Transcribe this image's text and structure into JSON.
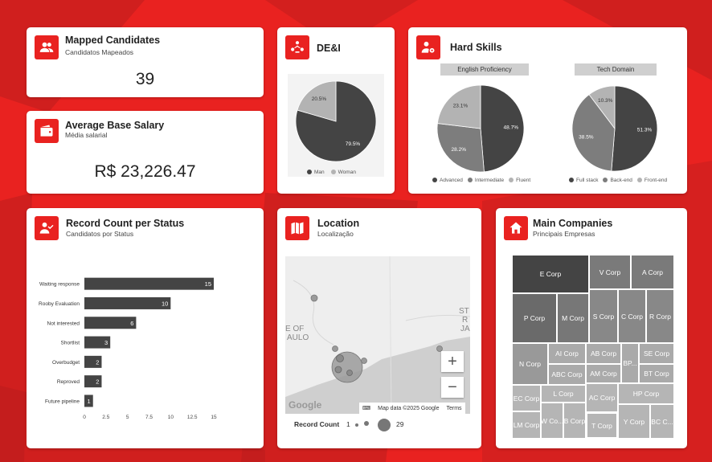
{
  "colors": {
    "brand": "#e92220",
    "dark_series": "#444444",
    "mid_series": "#7d7d7d",
    "light_series": "#b3b3b3"
  },
  "mapped_candidates": {
    "title": "Mapped Candidates",
    "subtitle": "Candidatos Mapeados",
    "value": "39",
    "icon": "people-icon"
  },
  "average_salary": {
    "title": "Average Base Salary",
    "subtitle": "Média salarial",
    "value": "R$ 23,226.47",
    "icon": "wallet-icon"
  },
  "dei": {
    "title": "DE&I",
    "icon": "diversity-icon",
    "chart_data": {
      "type": "pie",
      "labels": [
        "Man",
        "Woman"
      ],
      "values": [
        79.5,
        20.5
      ],
      "value_labels": [
        "79.5%",
        "20.5%"
      ]
    },
    "legend": [
      "Man",
      "Woman"
    ]
  },
  "hard_skills": {
    "title": "Hard Skills",
    "icon": "person-gear-icon",
    "english": {
      "header": "English Proficiency",
      "chart_data": {
        "type": "pie",
        "labels": [
          "Advanced",
          "Intermediate",
          "Fluent"
        ],
        "values": [
          48.7,
          28.2,
          23.1
        ],
        "value_labels": [
          "48.7%",
          "28.2%",
          "23.1%"
        ]
      },
      "legend": [
        "Advanced",
        "Intermediate",
        "Fluent"
      ]
    },
    "tech": {
      "header": "Tech Domain",
      "chart_data": {
        "type": "pie",
        "labels": [
          "Full stack",
          "Back-end",
          "Front-end"
        ],
        "values": [
          51.3,
          38.5,
          10.3
        ],
        "value_labels": [
          "51.3%",
          "38.5%",
          "10.3%"
        ]
      },
      "legend": [
        "Full stack",
        "Back-end",
        "Front-end"
      ]
    }
  },
  "record_status": {
    "title": "Record Count per Status",
    "subtitle": "Candidatos por Status",
    "icon": "person-check-icon",
    "chart_data": {
      "type": "bar",
      "orientation": "horizontal",
      "categories": [
        "Waiting response",
        "Rooby Evaluation",
        "Not interested",
        "Shortlist",
        "Overbudget",
        "Reproved",
        "Future pipeline"
      ],
      "values": [
        15,
        10,
        6,
        3,
        2,
        2,
        1
      ],
      "xlim": [
        0,
        15
      ],
      "xticks": [
        "0",
        "2.5",
        "5",
        "7.5",
        "10",
        "12.5",
        "15"
      ]
    }
  },
  "location": {
    "title": "Location",
    "subtitle": "Localização",
    "icon": "map-icon",
    "map_labels": [
      "E OF",
      "AULO",
      "ST",
      "R",
      "JA"
    ],
    "attribution": "Map data ©2025 Google",
    "terms": "Terms",
    "google": "Google",
    "legend_title": "Record Count",
    "legend_min": "1",
    "legend_max": "29",
    "zoom_in": "+",
    "zoom_out": "−"
  },
  "main_companies": {
    "title": "Main Companies",
    "subtitle": "Principais Empresas",
    "icon": "home-icon",
    "cells": [
      "E Corp",
      "V Corp",
      "A Corp",
      "P Corp",
      "M Corp",
      "S Corp",
      "C Corp",
      "R Corp",
      "N Corp",
      "AI Corp",
      "AB Corp",
      "BP...",
      "SE Corp",
      "ABC Corp",
      "AM Corp",
      "BT Corp",
      "EC Corp",
      "L Corp",
      "AC Corp",
      "HP Corp",
      "LM Corp",
      "W Co...",
      "B Corp",
      "T Corp",
      "Y Corp",
      "BC C..."
    ]
  }
}
